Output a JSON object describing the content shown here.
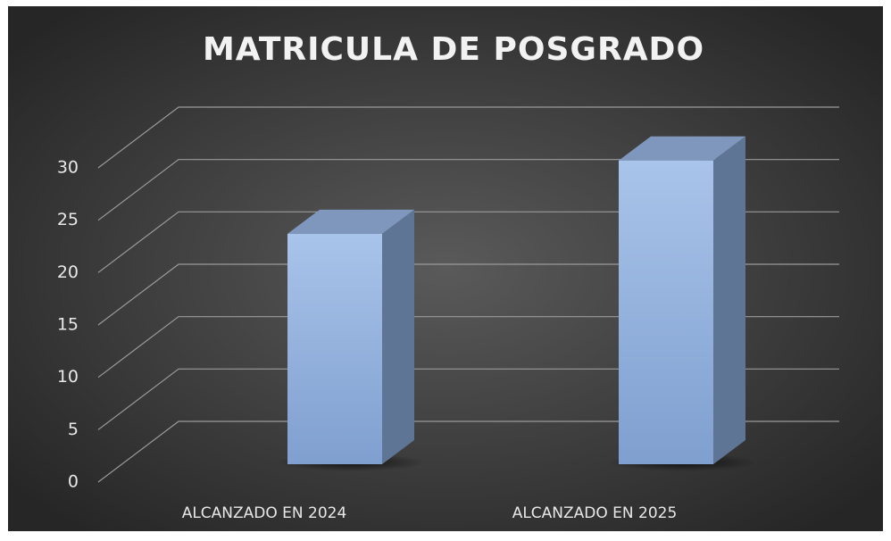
{
  "chart_data": {
    "type": "bar3d",
    "title": "MATRICULA DE POSGRADO",
    "categories": [
      "ALCANZADO EN 2024",
      "ALCANZADO EN 2025"
    ],
    "values": [
      22,
      29
    ],
    "color": "#95b3e0",
    "ylim": [
      0,
      30
    ],
    "yticks": [
      0,
      5,
      10,
      15,
      20,
      25,
      30
    ],
    "grid": true
  }
}
